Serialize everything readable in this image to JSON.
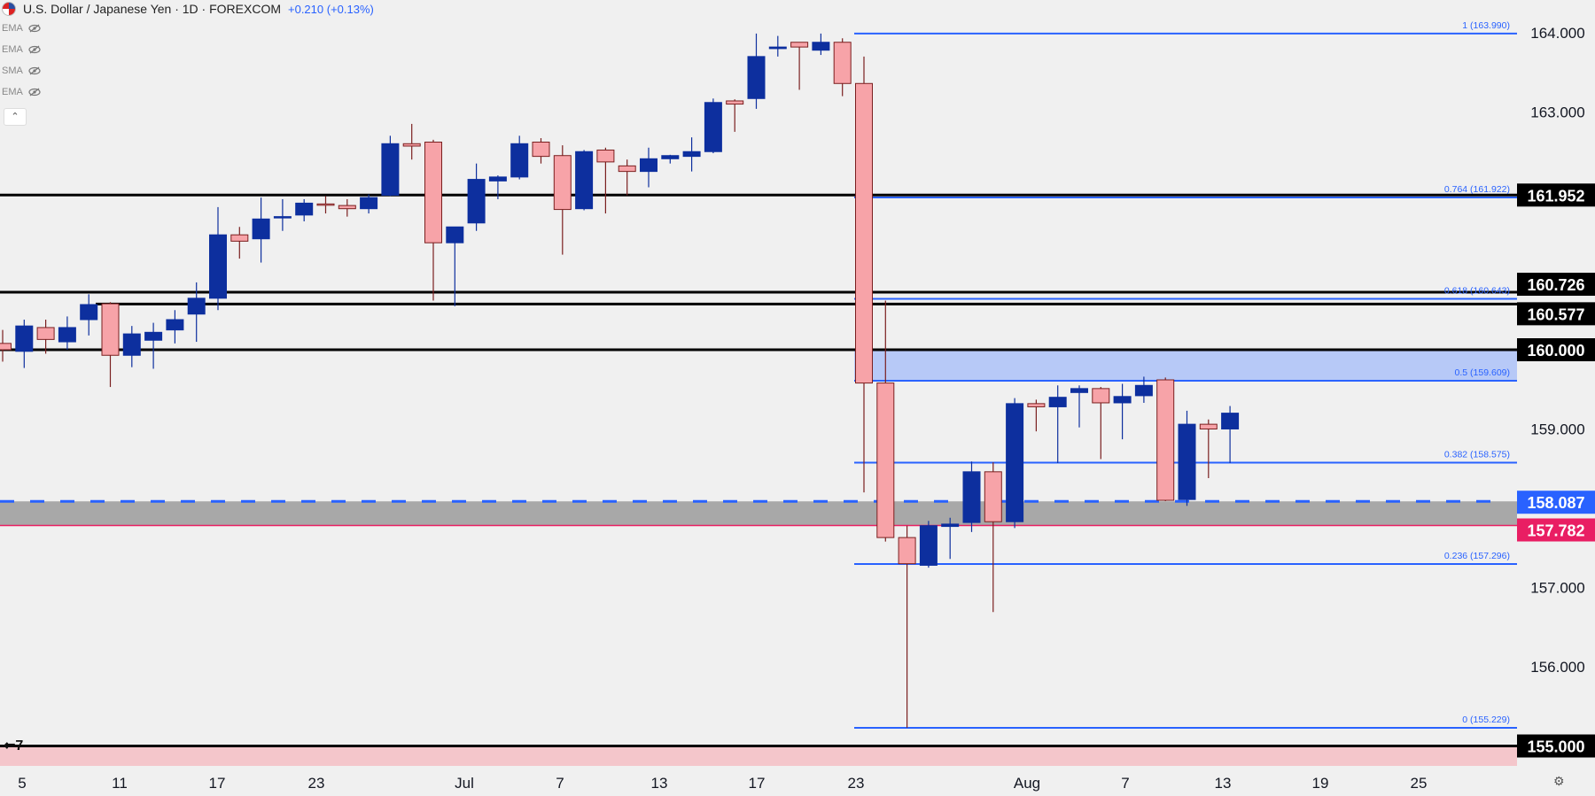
{
  "header": {
    "title": "U.S. Dollar / Japanese Yen · 1D · FOREXCOM",
    "change": "+0.210 (+0.13%)"
  },
  "indicators": [
    {
      "label": "EMA",
      "icon": "eye-off-icon"
    },
    {
      "label": "EMA",
      "icon": "eye-off-icon"
    },
    {
      "label": "SMA",
      "icon": "eye-off-icon"
    },
    {
      "label": "EMA",
      "icon": "eye-off-icon"
    }
  ],
  "colors": {
    "up_body": "#0d2f9e",
    "down_body": "#f7a3a8",
    "down_border": "#7a1f1f",
    "fib_line": "#2962ff",
    "sr_line": "#000000",
    "zone_blue": "#b3c6f7",
    "zone_gray": "#a0a0a0",
    "zone_pink": "#f4c6cb",
    "marker_red": "#e91e63",
    "price_label_bg": "#000000"
  },
  "chart_data": {
    "type": "candlestick",
    "x_axis_labels": [
      "5",
      "11",
      "17",
      "23",
      "Jul",
      "7",
      "13",
      "17",
      "23",
      "Aug",
      "7",
      "13",
      "19",
      "25"
    ],
    "y_ticks": [
      "156.000",
      "157.000",
      "158.000",
      "159.000",
      "163.000",
      "164.000"
    ],
    "ylim": [
      154.6,
      164.6
    ],
    "candles": [
      {
        "o": 160.08,
        "h": 160.25,
        "l": 159.85,
        "c": 160.0
      },
      {
        "o": 159.98,
        "h": 160.38,
        "l": 159.77,
        "c": 160.3
      },
      {
        "o": 160.28,
        "h": 160.38,
        "l": 159.95,
        "c": 160.13
      },
      {
        "o": 160.1,
        "h": 160.42,
        "l": 160.0,
        "c": 160.28
      },
      {
        "o": 160.38,
        "h": 160.7,
        "l": 160.18,
        "c": 160.57
      },
      {
        "o": 160.58,
        "h": 160.6,
        "l": 159.53,
        "c": 159.93
      },
      {
        "o": 159.93,
        "h": 160.3,
        "l": 159.78,
        "c": 160.2
      },
      {
        "o": 160.12,
        "h": 160.34,
        "l": 159.76,
        "c": 160.22
      },
      {
        "o": 160.25,
        "h": 160.5,
        "l": 160.08,
        "c": 160.38
      },
      {
        "o": 160.45,
        "h": 160.85,
        "l": 160.1,
        "c": 160.65
      },
      {
        "o": 160.65,
        "h": 161.8,
        "l": 160.5,
        "c": 161.45
      },
      {
        "o": 161.45,
        "h": 161.55,
        "l": 161.15,
        "c": 161.37
      },
      {
        "o": 161.4,
        "h": 161.92,
        "l": 161.1,
        "c": 161.65
      },
      {
        "o": 161.68,
        "h": 161.9,
        "l": 161.5,
        "c": 161.68
      },
      {
        "o": 161.7,
        "h": 161.9,
        "l": 161.62,
        "c": 161.85
      },
      {
        "o": 161.84,
        "h": 161.94,
        "l": 161.72,
        "c": 161.83
      },
      {
        "o": 161.82,
        "h": 161.9,
        "l": 161.68,
        "c": 161.78
      },
      {
        "o": 161.78,
        "h": 161.96,
        "l": 161.72,
        "c": 161.92
      },
      {
        "o": 161.95,
        "h": 162.7,
        "l": 161.94,
        "c": 162.6
      },
      {
        "o": 162.6,
        "h": 162.85,
        "l": 162.4,
        "c": 162.57
      },
      {
        "o": 162.62,
        "h": 162.65,
        "l": 160.62,
        "c": 161.35
      },
      {
        "o": 161.35,
        "h": 161.55,
        "l": 160.55,
        "c": 161.55
      },
      {
        "o": 161.6,
        "h": 162.35,
        "l": 161.5,
        "c": 162.15
      },
      {
        "o": 162.13,
        "h": 162.2,
        "l": 161.9,
        "c": 162.18
      },
      {
        "o": 162.18,
        "h": 162.7,
        "l": 162.15,
        "c": 162.6
      },
      {
        "o": 162.62,
        "h": 162.67,
        "l": 162.35,
        "c": 162.44
      },
      {
        "o": 162.45,
        "h": 162.58,
        "l": 161.2,
        "c": 161.77
      },
      {
        "o": 161.78,
        "h": 162.52,
        "l": 161.76,
        "c": 162.5
      },
      {
        "o": 162.52,
        "h": 162.55,
        "l": 161.72,
        "c": 162.37
      },
      {
        "o": 162.32,
        "h": 162.4,
        "l": 161.95,
        "c": 162.25
      },
      {
        "o": 162.25,
        "h": 162.55,
        "l": 162.05,
        "c": 162.41
      },
      {
        "o": 162.41,
        "h": 162.46,
        "l": 162.35,
        "c": 162.45
      },
      {
        "o": 162.44,
        "h": 162.68,
        "l": 162.25,
        "c": 162.5
      },
      {
        "o": 162.5,
        "h": 163.17,
        "l": 162.48,
        "c": 163.12
      },
      {
        "o": 163.14,
        "h": 163.16,
        "l": 162.75,
        "c": 163.1
      },
      {
        "o": 163.17,
        "h": 163.99,
        "l": 163.04,
        "c": 163.7
      },
      {
        "o": 163.8,
        "h": 163.96,
        "l": 163.7,
        "c": 163.82
      },
      {
        "o": 163.88,
        "h": 163.88,
        "l": 163.28,
        "c": 163.82
      },
      {
        "o": 163.78,
        "h": 163.99,
        "l": 163.72,
        "c": 163.88
      },
      {
        "o": 163.88,
        "h": 163.93,
        "l": 163.2,
        "c": 163.36
      },
      {
        "o": 163.36,
        "h": 163.7,
        "l": 158.2,
        "c": 159.58
      },
      {
        "o": 159.58,
        "h": 160.62,
        "l": 157.58,
        "c": 157.63
      },
      {
        "o": 157.63,
        "h": 157.78,
        "l": 155.23,
        "c": 157.3
      },
      {
        "o": 157.28,
        "h": 157.84,
        "l": 157.25,
        "c": 157.78
      },
      {
        "o": 157.77,
        "h": 157.88,
        "l": 157.36,
        "c": 157.8
      },
      {
        "o": 157.82,
        "h": 158.59,
        "l": 157.7,
        "c": 158.46
      },
      {
        "o": 158.46,
        "h": 158.58,
        "l": 156.69,
        "c": 157.83
      },
      {
        "o": 157.83,
        "h": 159.39,
        "l": 157.75,
        "c": 159.32
      },
      {
        "o": 159.32,
        "h": 159.37,
        "l": 158.97,
        "c": 159.28
      },
      {
        "o": 159.28,
        "h": 159.55,
        "l": 158.57,
        "c": 159.4
      },
      {
        "o": 159.46,
        "h": 159.55,
        "l": 159.02,
        "c": 159.51
      },
      {
        "o": 159.51,
        "h": 159.53,
        "l": 158.62,
        "c": 159.33
      },
      {
        "o": 159.33,
        "h": 159.57,
        "l": 158.87,
        "c": 159.41
      },
      {
        "o": 159.42,
        "h": 159.66,
        "l": 159.33,
        "c": 159.55
      },
      {
        "o": 159.62,
        "h": 159.65,
        "l": 158.09,
        "c": 158.1
      },
      {
        "o": 158.11,
        "h": 159.23,
        "l": 158.03,
        "c": 159.06
      },
      {
        "o": 159.06,
        "h": 159.12,
        "l": 158.38,
        "c": 159.0
      },
      {
        "o": 159.0,
        "h": 159.29,
        "l": 158.57,
        "c": 159.2
      }
    ],
    "levels": [
      {
        "price": 161.952,
        "label": "161.952",
        "bg": "#000000",
        "fg": "#ffffff"
      },
      {
        "price": 160.726,
        "label": "160.726",
        "bg": "#000000",
        "fg": "#ffffff"
      },
      {
        "price": 160.577,
        "label": "160.577",
        "bg": "#000000",
        "fg": "#ffffff"
      },
      {
        "price": 160.0,
        "label": "160.000",
        "bg": "#000000",
        "fg": "#ffffff"
      },
      {
        "price": 158.087,
        "label": "158.087",
        "bg": "#2962ff",
        "fg": "#ffffff"
      },
      {
        "price": 157.782,
        "label": "157.782",
        "bg": "#e91e63",
        "fg": "#ffffff"
      },
      {
        "price": 155.0,
        "label": "155.000",
        "bg": "#000000",
        "fg": "#ffffff"
      }
    ],
    "fib_levels": [
      {
        "price": 163.99,
        "label": "1 (163.990)"
      },
      {
        "price": 161.922,
        "label": "0.764 (161.922)"
      },
      {
        "price": 160.643,
        "label": "0.618 (160.643)"
      },
      {
        "price": 159.609,
        "label": "0.5 (159.609)"
      },
      {
        "price": 158.575,
        "label": "0.382 (158.575)"
      },
      {
        "price": 157.296,
        "label": "0.236 (157.296)"
      },
      {
        "price": 155.229,
        "label": "0 (155.229)"
      }
    ],
    "zones": [
      {
        "from": 159.609,
        "to": 160.0,
        "color": "#b3c6f7"
      },
      {
        "from": 157.782,
        "to": 158.087,
        "color": "#a0a0a0"
      }
    ]
  }
}
